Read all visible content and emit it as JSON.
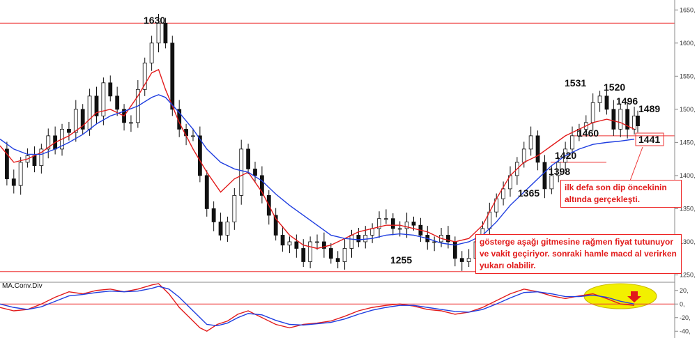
{
  "chart_data": [
    {
      "type": "candlestick",
      "title": "",
      "xlabel": "",
      "ylabel": "",
      "ylim": [
        1240,
        1665
      ],
      "y_ticks": [
        "1250,",
        "1300,",
        "1350,",
        "1400,",
        "1450,",
        "1500,",
        "1550,",
        "1600,",
        "1650,"
      ],
      "series": [
        {
          "name": "",
          "role": "close",
          "x": [
            0,
            10,
            20,
            30,
            40,
            50,
            60,
            70,
            80,
            90,
            100,
            110,
            120,
            130,
            140,
            150,
            160,
            170,
            180,
            190,
            200,
            210,
            220,
            230,
            240,
            250,
            260,
            270,
            280,
            290,
            300,
            310,
            320,
            330,
            340,
            350,
            360,
            370,
            380,
            390,
            400,
            410,
            420,
            430,
            440,
            450,
            460,
            470,
            480,
            490,
            500,
            510,
            520,
            530,
            540,
            550,
            560,
            570,
            580,
            590,
            600,
            610,
            620,
            630,
            640,
            650,
            660,
            670,
            680,
            690,
            700,
            710,
            720,
            730,
            740,
            750,
            760,
            770,
            780,
            790,
            800,
            810,
            820,
            830,
            840,
            850,
            860,
            870,
            880,
            890,
            900,
            910,
            920,
            925
          ],
          "values": [
            1440,
            1395,
            1385,
            1420,
            1430,
            1415,
            1440,
            1460,
            1440,
            1470,
            1465,
            1500,
            1470,
            1520,
            1490,
            1540,
            1520,
            1500,
            1480,
            1480,
            1530,
            1570,
            1600,
            1630,
            1600,
            1500,
            1470,
            1460,
            1460,
            1400,
            1350,
            1330,
            1310,
            1330,
            1370,
            1440,
            1410,
            1400,
            1370,
            1340,
            1310,
            1295,
            1300,
            1290,
            1270,
            1300,
            1300,
            1290,
            1275,
            1270,
            1290,
            1310,
            1300,
            1310,
            1320,
            1335,
            1335,
            1320,
            1320,
            1330,
            1325,
            1310,
            1300,
            1300,
            1310,
            1300,
            1275,
            1270,
            1275,
            1300,
            1320,
            1345,
            1365,
            1380,
            1400,
            1420,
            1440,
            1460,
            1420,
            1380,
            1400,
            1420,
            1440,
            1460,
            1470,
            1480,
            1510,
            1520,
            1500,
            1470,
            1500,
            1470,
            1490,
            1475
          ]
        },
        {
          "name": "",
          "role": "ma-fast",
          "color": "#e21b1b",
          "x": [
            0,
            20,
            40,
            60,
            80,
            100,
            120,
            140,
            160,
            180,
            200,
            220,
            230,
            240,
            260,
            280,
            300,
            320,
            340,
            360,
            380,
            400,
            420,
            440,
            460,
            480,
            500,
            520,
            540,
            560,
            580,
            600,
            620,
            640,
            660,
            680,
            700,
            720,
            740,
            760,
            780,
            800,
            820,
            840,
            860,
            880,
            900,
            920
          ],
          "values": [
            1445,
            1420,
            1425,
            1435,
            1450,
            1460,
            1475,
            1495,
            1500,
            1490,
            1520,
            1555,
            1560,
            1530,
            1480,
            1440,
            1405,
            1375,
            1395,
            1405,
            1375,
            1335,
            1310,
            1295,
            1290,
            1295,
            1305,
            1315,
            1320,
            1325,
            1325,
            1320,
            1315,
            1305,
            1300,
            1305,
            1325,
            1365,
            1400,
            1420,
            1430,
            1445,
            1460,
            1470,
            1480,
            1485,
            1480,
            1470
          ]
        },
        {
          "name": "",
          "role": "ma-slow",
          "color": "#1f3ee0",
          "x": [
            0,
            20,
            40,
            60,
            80,
            100,
            120,
            140,
            160,
            180,
            200,
            220,
            230,
            240,
            260,
            280,
            300,
            320,
            340,
            360,
            380,
            400,
            420,
            440,
            460,
            480,
            500,
            520,
            540,
            560,
            580,
            600,
            620,
            640,
            660,
            680,
            700,
            720,
            740,
            760,
            780,
            800,
            820,
            840,
            860,
            880,
            900,
            920
          ],
          "values": [
            1455,
            1440,
            1432,
            1432,
            1440,
            1450,
            1462,
            1478,
            1490,
            1497,
            1505,
            1518,
            1522,
            1518,
            1495,
            1470,
            1440,
            1420,
            1410,
            1405,
            1392,
            1372,
            1355,
            1340,
            1325,
            1310,
            1305,
            1303,
            1305,
            1310,
            1312,
            1310,
            1305,
            1298,
            1295,
            1300,
            1310,
            1330,
            1355,
            1375,
            1395,
            1415,
            1430,
            1440,
            1447,
            1450,
            1452,
            1455
          ]
        }
      ],
      "horizontal_lines": [
        1630,
        1255,
        1460,
        1420
      ],
      "peak_labels": [
        "1630",
        "1255",
        "1531",
        "1520",
        "1496",
        "1489",
        "1460",
        "1441",
        "1420",
        "1398",
        "1365"
      ],
      "annotations": [
        "ilk defa son dip öncekinin altında gerçekleşti.",
        "gösterge aşağı gitmesine rağmen fiyat tutunuyor ve vakit geçiriyor. sonraki hamle macd al verirken yukarı olabilir."
      ]
    },
    {
      "type": "line",
      "title": "MA.Conv.Div",
      "ylim": [
        -50,
        30
      ],
      "y_ticks": [
        "20,",
        "0,",
        "-20,",
        "-40,"
      ],
      "series": [
        {
          "name": "",
          "color": "#e21b1b",
          "x": [
            0,
            20,
            40,
            60,
            80,
            100,
            120,
            140,
            160,
            180,
            200,
            220,
            230,
            245,
            260,
            275,
            290,
            300,
            315,
            330,
            345,
            360,
            380,
            400,
            420,
            440,
            460,
            480,
            500,
            520,
            540,
            560,
            580,
            600,
            620,
            640,
            660,
            680,
            700,
            720,
            740,
            760,
            780,
            800,
            820,
            840,
            860,
            880,
            900,
            920
          ],
          "values": [
            -5,
            -10,
            -8,
            0,
            10,
            18,
            15,
            20,
            22,
            18,
            22,
            28,
            30,
            15,
            -5,
            -20,
            -35,
            -40,
            -30,
            -25,
            -15,
            -10,
            -20,
            -30,
            -35,
            -30,
            -28,
            -25,
            -18,
            -10,
            -5,
            -2,
            0,
            -3,
            -8,
            -10,
            -15,
            -12,
            -5,
            5,
            15,
            22,
            18,
            12,
            8,
            12,
            15,
            8,
            0,
            -2
          ]
        },
        {
          "name": "",
          "color": "#1f3ee0",
          "x": [
            0,
            20,
            40,
            60,
            80,
            100,
            120,
            140,
            160,
            180,
            200,
            220,
            230,
            245,
            260,
            275,
            290,
            300,
            315,
            330,
            345,
            360,
            380,
            400,
            420,
            440,
            460,
            480,
            500,
            520,
            540,
            560,
            580,
            600,
            620,
            640,
            660,
            680,
            700,
            720,
            740,
            760,
            780,
            800,
            820,
            840,
            860,
            880,
            900,
            920
          ],
          "values": [
            0,
            -5,
            -8,
            -4,
            4,
            12,
            14,
            17,
            19,
            18,
            19,
            23,
            26,
            22,
            10,
            -5,
            -20,
            -30,
            -32,
            -28,
            -20,
            -14,
            -16,
            -24,
            -30,
            -31,
            -29,
            -27,
            -22,
            -15,
            -9,
            -5,
            -2,
            -2,
            -5,
            -8,
            -11,
            -12,
            -8,
            0,
            9,
            17,
            18,
            15,
            11,
            11,
            13,
            10,
            4,
            0
          ]
        }
      ],
      "highlight": "yellow-ellipse"
    }
  ]
}
